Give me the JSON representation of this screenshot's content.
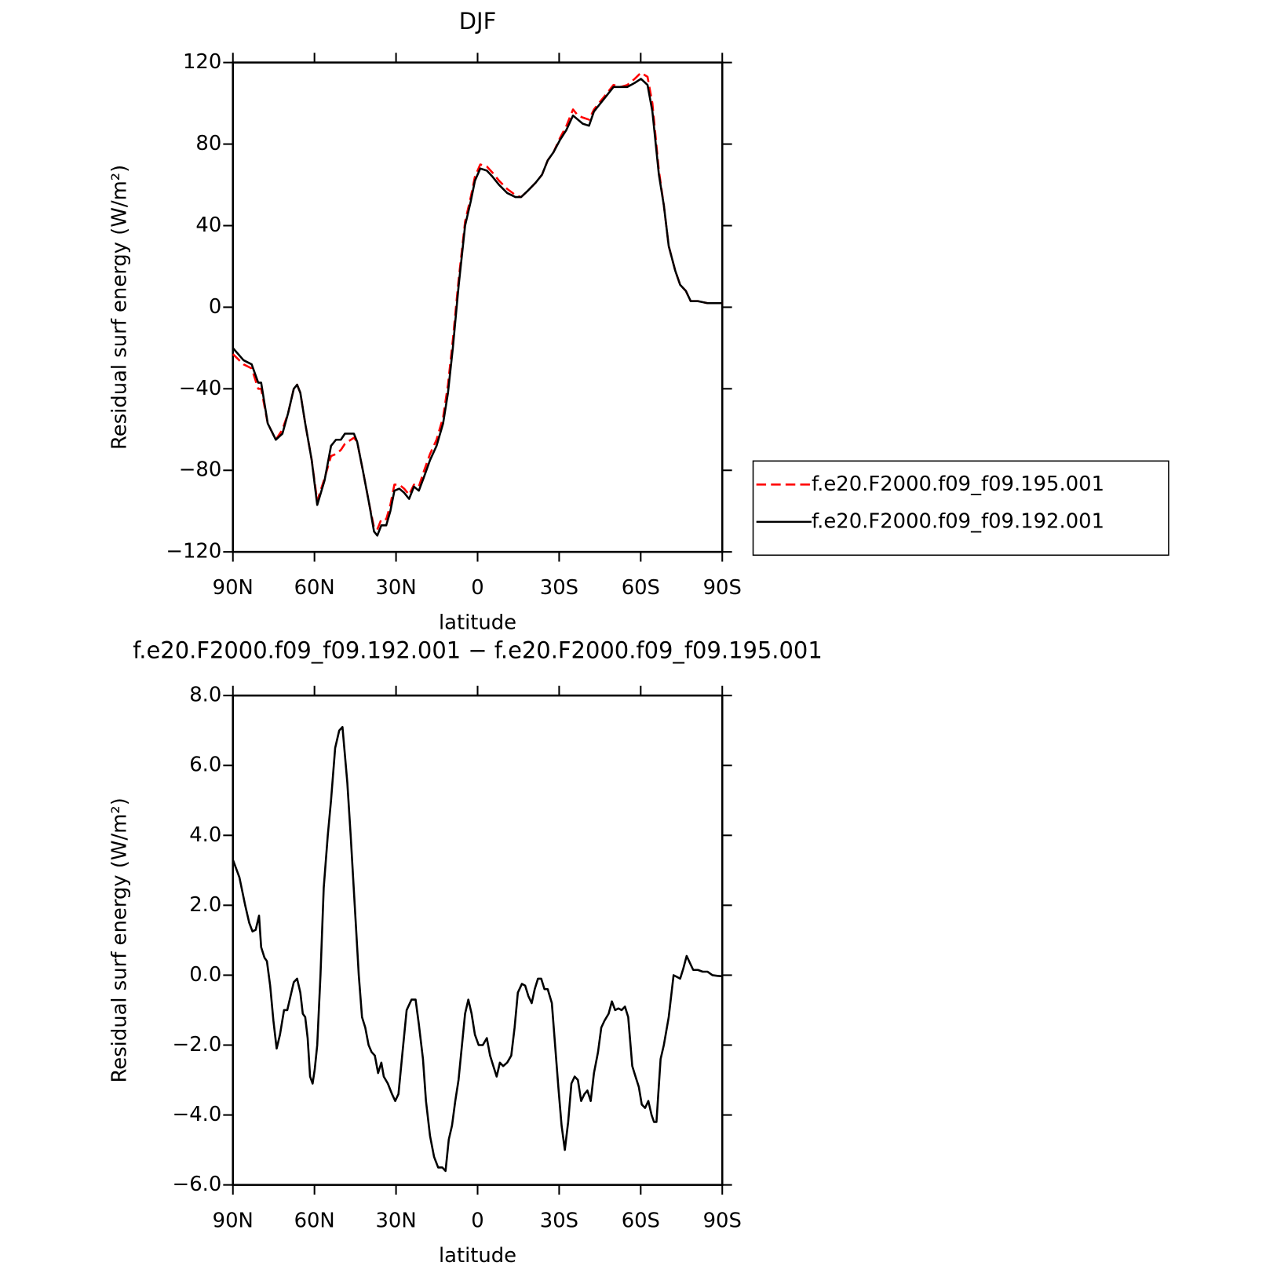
{
  "chart_data": [
    {
      "type": "line",
      "title": "DJF",
      "xlabel": "latitude",
      "ylabel": "Residual surf energy (W/m²)",
      "x": [
        90,
        86.1,
        83.1,
        80.7,
        79.6,
        77.2,
        74.2,
        71.8,
        69.7,
        67.6,
        66.4,
        65.2,
        63.4,
        61.0,
        59.0,
        56.3,
        53.9,
        52.1,
        50.3,
        48.8,
        45.5,
        44.3,
        42.2,
        39.8,
        38.1,
        36.9,
        35.4,
        33.6,
        32.1,
        30.6,
        28.8,
        27.0,
        25.2,
        23.4,
        21.6,
        19.9,
        17.5,
        15.1,
        12.7,
        10.9,
        9.1,
        7.0,
        4.6,
        2.5,
        1.0,
        -1.0,
        -3.4,
        -5.5,
        -7.9,
        -10.9,
        -13.9,
        -16.0,
        -18.4,
        -21.3,
        -23.7,
        -25.8,
        -27.9,
        -30.3,
        -32.7,
        -35.1,
        -36.9,
        -38.7,
        -41.0,
        -42.8,
        -45.2,
        -47.6,
        -50.0,
        -52.7,
        -55.1,
        -57.8,
        -60.1,
        -62.5,
        -64.3,
        -66.7,
        -68.5,
        -70.3,
        -72.7,
        -74.5,
        -76.6,
        -78.4,
        -81.0,
        -84.6,
        -90
      ],
      "series": [
        {
          "name": "f.e20.F2000.f09_f09.195.001",
          "color": "#ff0000",
          "dash": true,
          "values": [
            -23,
            -28,
            -30,
            -40,
            -40,
            -57,
            -65,
            -60,
            -52,
            -40,
            -38,
            -42,
            -57,
            -75,
            -95,
            -84,
            -73,
            -72,
            -70,
            -67,
            -64,
            -66,
            -80,
            -97,
            -108,
            -109,
            -104,
            -104,
            -97,
            -87,
            -87,
            -89,
            -92,
            -87,
            -88,
            -81,
            -72,
            -65,
            -54,
            -38,
            -16,
            13,
            42,
            54,
            64,
            70,
            69,
            66,
            62,
            58,
            55,
            54,
            57,
            61,
            65,
            72,
            76,
            83,
            89,
            97,
            94,
            93,
            92,
            97,
            101,
            105,
            109,
            108,
            109,
            112,
            115,
            113,
            100,
            67,
            50,
            30,
            18,
            11,
            8,
            3,
            3,
            2,
            2
          ]
        },
        {
          "name": "f.e20.F2000.f09_f09.192.001",
          "color": "#000000",
          "dash": false,
          "values": [
            -20,
            -26,
            -28,
            -37,
            -37,
            -57,
            -65,
            -62,
            -52,
            -40,
            -38,
            -42,
            -57,
            -75,
            -97,
            -85,
            -68,
            -65,
            -65,
            -62,
            -62,
            -66,
            -80,
            -97,
            -110,
            -112,
            -107,
            -107,
            -100,
            -90,
            -89,
            -91,
            -94,
            -88,
            -90,
            -84,
            -75,
            -68,
            -57,
            -42,
            -20,
            10,
            40,
            52,
            62,
            68,
            67,
            64,
            60,
            56,
            54,
            54,
            57,
            61,
            65,
            72,
            76,
            82,
            87,
            94,
            92,
            90,
            89,
            96,
            100,
            104,
            108,
            108,
            108,
            110,
            112,
            109,
            96,
            65,
            50,
            30,
            18,
            11,
            8,
            3,
            3,
            2,
            2
          ]
        }
      ],
      "xlim": [
        90,
        -90
      ],
      "xticks": [
        {
          "value": 90,
          "label": "90N"
        },
        {
          "value": 60,
          "label": "60N"
        },
        {
          "value": 30,
          "label": "30N"
        },
        0,
        {
          "value": -30,
          "label": "30S"
        },
        {
          "value": -60,
          "label": "60S"
        },
        {
          "value": -90,
          "label": "90S"
        }
      ],
      "ylim": [
        -120,
        120
      ],
      "yticks": [
        {
          "value": -120,
          "label": "−120"
        },
        {
          "value": -80,
          "label": "−80"
        },
        {
          "value": -40,
          "label": "−40"
        },
        0,
        40,
        80,
        120
      ],
      "legend": "right"
    },
    {
      "type": "line",
      "title": "f.e20.F2000.f09_f09.192.001 − f.e20.F2000.f09_f09.195.001",
      "xlabel": "latitude",
      "ylabel": "Residual surf energy (W/m²)",
      "x": [
        90,
        87.6,
        85.5,
        84.0,
        82.8,
        81.6,
        80.4,
        79.6,
        78.4,
        77.5,
        76.3,
        75.1,
        73.9,
        72.7,
        71.2,
        70.0,
        68.8,
        67.6,
        66.4,
        65.2,
        64.3,
        63.4,
        62.5,
        61.6,
        60.7,
        59.9,
        59.0,
        57.8,
        56.6,
        55.1,
        53.9,
        52.4,
        50.9,
        49.7,
        47.9,
        46.7,
        45.2,
        43.7,
        42.5,
        41.3,
        40.1,
        39.0,
        37.8,
        36.6,
        35.4,
        34.5,
        33.0,
        31.5,
        30.3,
        29.1,
        27.6,
        26.1,
        24.3,
        22.8,
        21.6,
        20.1,
        19.0,
        17.5,
        16.0,
        14.5,
        13.0,
        11.8,
        10.6,
        9.4,
        8.2,
        7.0,
        5.5,
        4.6,
        3.4,
        2.2,
        1.0,
        -0.4,
        -1.9,
        -3.4,
        -4.6,
        -5.8,
        -7.0,
        -8.2,
        -9.4,
        -10.9,
        -12.4,
        -13.6,
        -14.8,
        -16.3,
        -17.5,
        -18.7,
        -19.9,
        -21.0,
        -22.2,
        -23.4,
        -24.6,
        -25.8,
        -27.3,
        -28.5,
        -29.7,
        -30.9,
        -32.1,
        -33.3,
        -34.5,
        -35.7,
        -36.9,
        -38.1,
        -39.3,
        -40.4,
        -41.6,
        -42.8,
        -44.3,
        -45.5,
        -46.7,
        -48.2,
        -49.4,
        -50.6,
        -51.8,
        -53.0,
        -54.2,
        -55.4,
        -56.9,
        -58.1,
        -59.3,
        -60.4,
        -61.6,
        -62.8,
        -64.0,
        -64.9,
        -65.8,
        -67.3,
        -68.5,
        -70.3,
        -72.1,
        -73.3,
        -74.5,
        -75.7,
        -76.9,
        -78.1,
        -79.3,
        -81.0,
        -82.8,
        -84.6,
        -86.4,
        -88.2,
        -90
      ],
      "values": [
        3.3,
        2.8,
        2.0,
        1.5,
        1.25,
        1.3,
        1.7,
        0.8,
        0.5,
        0.4,
        -0.3,
        -1.3,
        -2.1,
        -1.7,
        -1.0,
        -1.0,
        -0.6,
        -0.2,
        -0.1,
        -0.5,
        -1.1,
        -1.2,
        -1.8,
        -2.9,
        -3.1,
        -2.7,
        -2.0,
        0.0,
        2.5,
        4.0,
        5.0,
        6.5,
        7.0,
        7.1,
        5.5,
        4.0,
        2.0,
        0.0,
        -1.2,
        -1.5,
        -2.0,
        -2.2,
        -2.3,
        -2.8,
        -2.5,
        -2.9,
        -3.1,
        -3.4,
        -3.6,
        -3.4,
        -2.2,
        -1.0,
        -0.7,
        -0.7,
        -1.4,
        -2.4,
        -3.6,
        -4.6,
        -5.2,
        -5.5,
        -5.5,
        -5.6,
        -4.7,
        -4.3,
        -3.6,
        -3.0,
        -1.8,
        -1.1,
        -0.7,
        -1.1,
        -1.7,
        -2.0,
        -2.0,
        -1.8,
        -2.3,
        -2.6,
        -2.9,
        -2.5,
        -2.6,
        -2.5,
        -2.3,
        -1.5,
        -0.5,
        -0.25,
        -0.3,
        -0.6,
        -0.8,
        -0.4,
        -0.1,
        -0.1,
        -0.4,
        -0.4,
        -0.8,
        -2.0,
        -3.2,
        -4.3,
        -5.0,
        -4.2,
        -3.1,
        -2.9,
        -3.0,
        -3.6,
        -3.4,
        -3.3,
        -3.6,
        -2.8,
        -2.2,
        -1.5,
        -1.3,
        -1.1,
        -0.75,
        -1.0,
        -0.95,
        -1.0,
        -0.9,
        -1.2,
        -2.6,
        -2.9,
        -3.2,
        -3.7,
        -3.8,
        -3.6,
        -4.0,
        -4.2,
        -4.2,
        -2.4,
        -2.0,
        -1.2,
        0.0,
        -0.05,
        -0.1,
        0.2,
        0.55,
        0.35,
        0.15,
        0.15,
        0.1,
        0.1,
        0.0,
        -0.02,
        -0.03
      ],
      "color": "#000000",
      "xlim": [
        90,
        -90
      ],
      "xticks": [
        {
          "value": 90,
          "label": "90N"
        },
        {
          "value": 60,
          "label": "60N"
        },
        {
          "value": 30,
          "label": "30N"
        },
        0,
        {
          "value": -30,
          "label": "30S"
        },
        {
          "value": -60,
          "label": "60S"
        },
        {
          "value": -90,
          "label": "90S"
        }
      ],
      "ylim": [
        -6,
        8
      ],
      "yticks": [
        {
          "value": -6,
          "label": "−6.0"
        },
        {
          "value": -4,
          "label": "−4.0"
        },
        {
          "value": -2,
          "label": "−2.0"
        },
        {
          "value": 0,
          "label": "0.0"
        },
        {
          "value": 2,
          "label": "2.0"
        },
        {
          "value": 4,
          "label": "4.0"
        },
        {
          "value": 6,
          "label": "6.0"
        },
        {
          "value": 8,
          "label": "8.0"
        }
      ]
    }
  ]
}
